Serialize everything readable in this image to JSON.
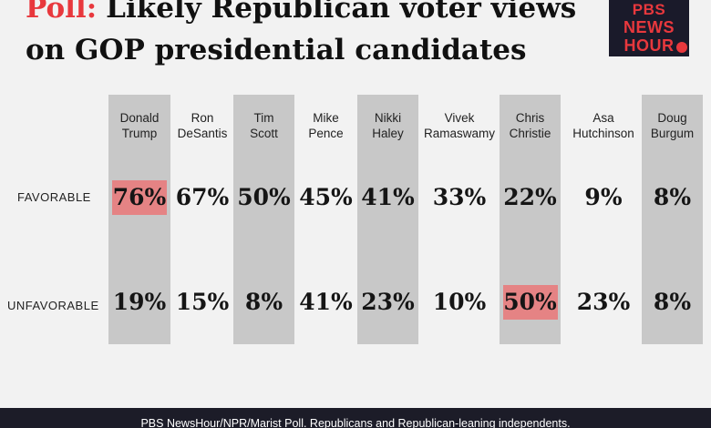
{
  "title": {
    "lead": "Poll:",
    "line1": "Likely Republican voter views",
    "line2": "on GOP presidential candidates"
  },
  "logo": {
    "line1": "PBS",
    "line2": "NEWS",
    "line3": "HOUR"
  },
  "colors": {
    "band": "#c8c8c8",
    "highlight": "#e58384",
    "accent": "#e8383d",
    "footer": "#1c1c28"
  },
  "chart_data": {
    "type": "table",
    "title": "Likely Republican voter views on GOP presidential candidates",
    "columns": [
      {
        "name": [
          "Donald",
          "Trump"
        ],
        "favorable": "76%",
        "unfavorable": "19%",
        "shaded": true
      },
      {
        "name": [
          "Ron",
          "DeSantis"
        ],
        "favorable": "67%",
        "unfavorable": "15%",
        "shaded": false
      },
      {
        "name": [
          "Tim",
          "Scott"
        ],
        "favorable": "50%",
        "unfavorable": "8%",
        "shaded": true
      },
      {
        "name": [
          "Mike",
          "Pence"
        ],
        "favorable": "45%",
        "unfavorable": "41%",
        "shaded": false
      },
      {
        "name": [
          "Nikki",
          "Haley"
        ],
        "favorable": "41%",
        "unfavorable": "23%",
        "shaded": true
      },
      {
        "name": [
          "Vivek",
          "Ramaswamy"
        ],
        "favorable": "33%",
        "unfavorable": "10%",
        "shaded": false
      },
      {
        "name": [
          "Chris",
          "Christie"
        ],
        "favorable": "22%",
        "unfavorable": "50%",
        "shaded": true
      },
      {
        "name": [
          "Asa",
          "Hutchinson"
        ],
        "favorable": "9%",
        "unfavorable": "23%",
        "shaded": false
      },
      {
        "name": [
          "Doug",
          "Burgum"
        ],
        "favorable": "8%",
        "unfavorable": "8%",
        "shaded": true
      }
    ],
    "rows": [
      "FAVORABLE",
      "UNFAVORABLE"
    ],
    "highlighted": [
      {
        "row": "favorable",
        "col": 0
      },
      {
        "row": "unfavorable",
        "col": 6
      }
    ]
  },
  "footer": {
    "source": "PBS NewsHour/NPR/Marist Poll. Republicans and Republican-leaning independents."
  }
}
